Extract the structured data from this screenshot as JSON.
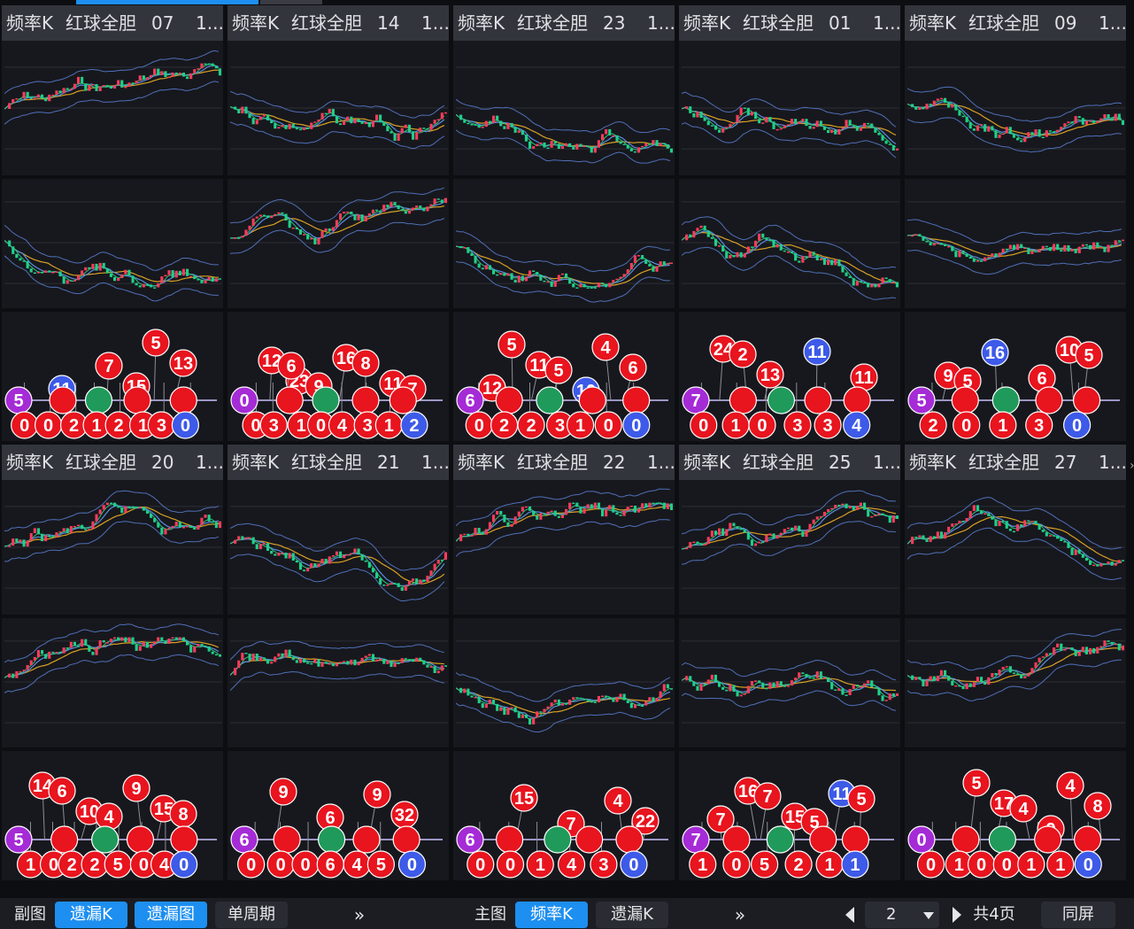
{
  "colors": {
    "red_ball": "#e8141e",
    "blue_ball": "#3d5ae8",
    "purple_ball": "#a52bd6",
    "green_ball": "#1f9a5a",
    "bull": "#ff3b5c",
    "bear": "#1fcf8a",
    "ma_yellow": "#d9a025",
    "ma_blue": "#5a8de0",
    "ma_green": "#2cc07a",
    "accent": "#1d8ff0"
  },
  "panels": [
    {
      "title": {
        "freq": "频率K",
        "type": "红球全胆",
        "num": "07",
        "more": "1..."
      },
      "seed": 7,
      "balls": {
        "front": [
          "15",
          "13",
          "11",
          "7",
          "5"
        ],
        "back": [
          "0",
          "0",
          "2",
          "1",
          "2",
          "1",
          "3",
          "0"
        ],
        "purple": "5"
      }
    },
    {
      "title": {
        "freq": "频率K",
        "type": "红球全胆",
        "num": "14",
        "more": "1..."
      },
      "seed": 14,
      "balls": {
        "front": [
          "23",
          "16",
          "11",
          "12",
          "9",
          "8",
          "7",
          "6"
        ],
        "back": [
          "0",
          "3",
          "1",
          "0",
          "4",
          "3",
          "1",
          "2"
        ],
        "purple": "0"
      }
    },
    {
      "title": {
        "freq": "频率K",
        "type": "红球全胆",
        "num": "23",
        "more": "1..."
      },
      "seed": 23,
      "balls": {
        "front": [
          "12",
          "11",
          "10",
          "6",
          "5",
          "5",
          "4"
        ],
        "back": [
          "0",
          "2",
          "2",
          "3",
          "1",
          "0",
          "0"
        ],
        "purple": "6"
      }
    },
    {
      "title": {
        "freq": "频率K",
        "type": "红球全胆",
        "num": "01",
        "more": "1..."
      },
      "seed": 1,
      "balls": {
        "front": [
          "24",
          "13",
          "11",
          "11",
          "2"
        ],
        "back": [
          "0",
          "1",
          "0",
          "3",
          "3",
          "4"
        ],
        "purple": "7"
      }
    },
    {
      "title": {
        "freq": "频率K",
        "type": "红球全胆",
        "num": "09",
        "more": "1..."
      },
      "seed": 9,
      "balls": {
        "front": [
          "10",
          "9",
          "16",
          "6",
          "5",
          "5"
        ],
        "back": [
          "2",
          "0",
          "1",
          "3",
          "0"
        ],
        "purple": "5"
      }
    },
    {
      "title": {
        "freq": "频率K",
        "type": "红球全胆",
        "num": "20",
        "more": "1..."
      },
      "seed": 20,
      "balls": {
        "front": [
          "15",
          "14",
          "10",
          "9",
          "8",
          "6",
          "4"
        ],
        "back": [
          "1",
          "0",
          "2",
          "2",
          "5",
          "0",
          "4",
          "0"
        ],
        "purple": "5"
      }
    },
    {
      "title": {
        "freq": "频率K",
        "type": "红球全胆",
        "num": "21",
        "more": "1..."
      },
      "seed": 21,
      "balls": {
        "front": [
          "32",
          "9",
          "6",
          "9"
        ],
        "back": [
          "0",
          "0",
          "0",
          "6",
          "4",
          "5",
          "0"
        ],
        "purple": "6"
      }
    },
    {
      "title": {
        "freq": "频率K",
        "type": "红球全胆",
        "num": "22",
        "more": "1..."
      },
      "seed": 22,
      "balls": {
        "front": [
          "22",
          "15",
          "7",
          "4"
        ],
        "back": [
          "0",
          "0",
          "1",
          "4",
          "3",
          "0"
        ],
        "purple": "6"
      }
    },
    {
      "title": {
        "freq": "频率K",
        "type": "红球全胆",
        "num": "25",
        "more": "1..."
      },
      "seed": 25,
      "balls": {
        "front": [
          "16",
          "15",
          "11",
          "7",
          "7",
          "5",
          "5"
        ],
        "back": [
          "1",
          "0",
          "5",
          "2",
          "1",
          "1"
        ],
        "purple": "7"
      }
    },
    {
      "title": {
        "freq": "频率K",
        "type": "红球全胆",
        "num": "27",
        "more": "1..."
      },
      "seed": 27,
      "balls": {
        "front": [
          "17",
          "9",
          "8",
          "5",
          "4",
          "4"
        ],
        "back": [
          "0",
          "1",
          "0",
          "0",
          "1",
          "1",
          "0"
        ],
        "purple": "0"
      }
    }
  ],
  "bottom": {
    "sub_label": "副图",
    "sub_btn1": "遗漏K",
    "sub_btn2": "遗漏图",
    "sub_btn3": "单周期",
    "more1": "»",
    "main_label": "主图",
    "main_btn1": "频率K",
    "main_btn2": "遗漏K",
    "more2": "»",
    "page_value": "2",
    "page_total": "共4页",
    "sync": "同屏"
  }
}
